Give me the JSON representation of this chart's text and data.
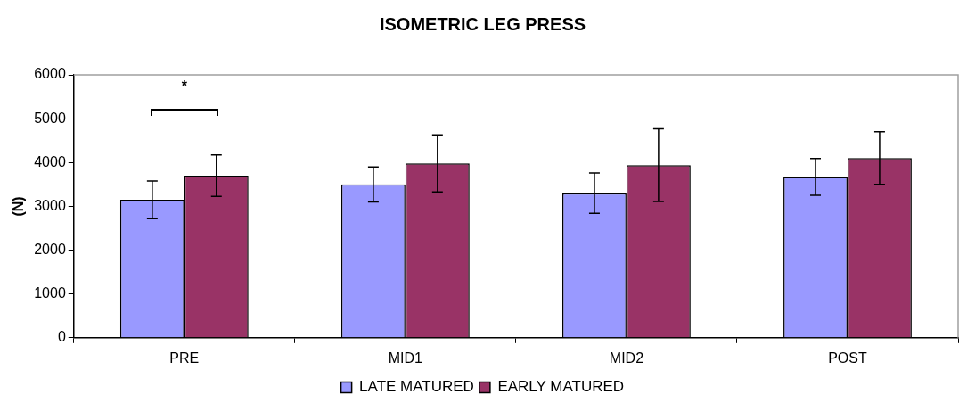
{
  "chart_data": {
    "type": "bar",
    "title": "ISOMETRIC LEG PRESS",
    "ylabel": "(N)",
    "categories": [
      "PRE",
      "MID1",
      "MID2",
      "POST"
    ],
    "series": [
      {
        "name": "LATE MATURED",
        "color": "#9999ff",
        "values": [
          3150,
          3500,
          3300,
          3670
        ],
        "errors": [
          430,
          400,
          460,
          420
        ]
      },
      {
        "name": "EARLY MATURED",
        "color": "#993366",
        "values": [
          3700,
          3980,
          3940,
          4100
        ],
        "errors": [
          475,
          650,
          830,
          600
        ]
      }
    ],
    "ylim": [
      0,
      6000
    ],
    "yticks": [
      0,
      1000,
      2000,
      3000,
      4000,
      5000,
      6000
    ],
    "annotations": [
      "*"
    ],
    "grid": false,
    "legend": "bottom"
  }
}
